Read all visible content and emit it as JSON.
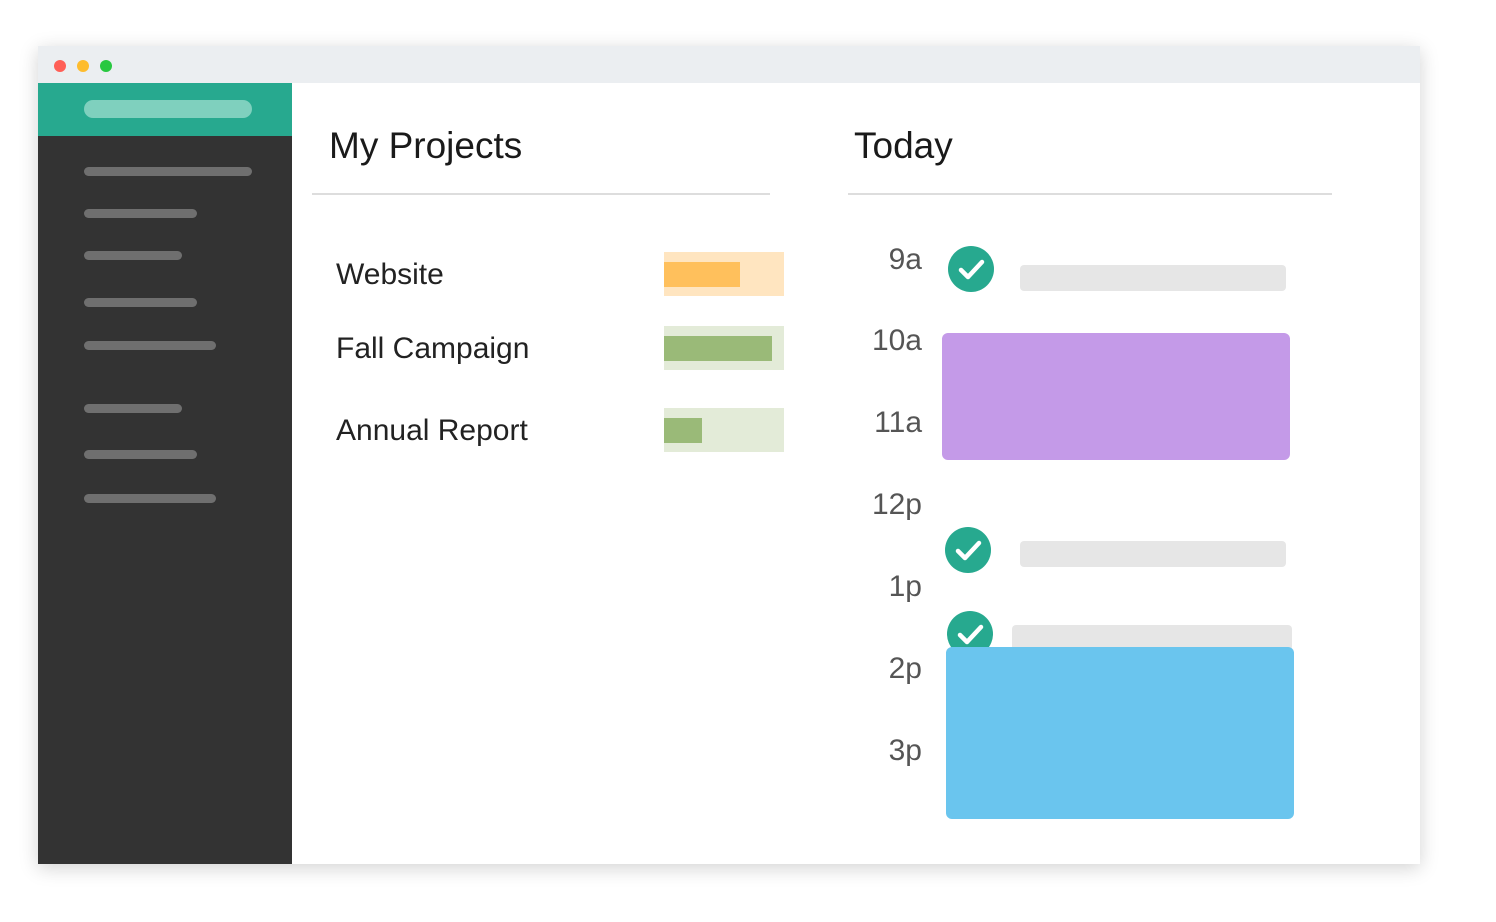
{
  "window": {
    "controls": [
      "close",
      "minimize",
      "zoom"
    ]
  },
  "colors": {
    "accent": "#27a98f",
    "sidebar": "#333333",
    "website_progress": "#ffc05c",
    "campaign_progress": "#9aba78",
    "report_progress": "#9aba78",
    "event_purple": "#c49ae8",
    "event_blue": "#6ac5ee"
  },
  "projects": {
    "title": "My Projects",
    "items": [
      {
        "name": "Website",
        "progress": 0.63
      },
      {
        "name": "Fall Campaign",
        "progress": 0.9
      },
      {
        "name": "Annual Report",
        "progress": 0.32
      }
    ]
  },
  "today": {
    "title": "Today",
    "times": [
      "9a",
      "10a",
      "11a",
      "12p",
      "1p",
      "2p",
      "3p"
    ],
    "check_icon": "check-circle-icon"
  }
}
